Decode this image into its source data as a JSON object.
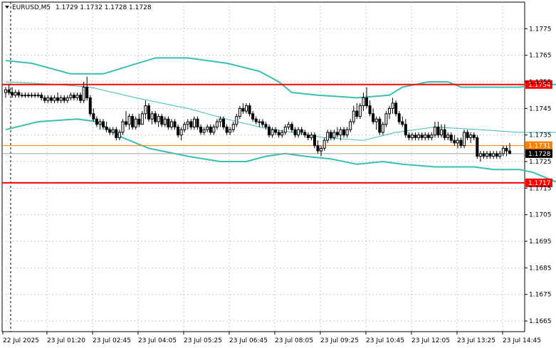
{
  "header": {
    "symbol": "EURUSD,M5",
    "ohlc": "1.1729 1.1732 1.1728 1.1728"
  },
  "chart_data": {
    "type": "candlestick",
    "symbol": "EURUSD",
    "timeframe": "M5",
    "ylim": [
      1.1661,
      1.1785
    ],
    "y_ticks": [
      "1.1775",
      "1.1765",
      "1.1755",
      "1.1745",
      "1.1735",
      "1.1725",
      "1.1715",
      "1.1705",
      "1.1695",
      "1.1685",
      "1.1675",
      "1.1665"
    ],
    "x_ticks": [
      "22 Jul 2025",
      "23 Jul 01:20",
      "23 Jul 02:45",
      "23 Jul 04:05",
      "23 Jul 05:25",
      "23 Jul 06:45",
      "23 Jul 08:05",
      "23 Jul 09:25",
      "23 Jul 10:45",
      "23 Jul 12:05",
      "23 Jul 13:25",
      "23 Jul 14:45"
    ],
    "grid": true,
    "levels": [
      {
        "label": "1.1754",
        "value": 1.1754,
        "color": "#ff0000",
        "width": 2
      },
      {
        "label": "1.1731",
        "value": 1.1731,
        "color": "#ff8000",
        "width": 1
      },
      {
        "label": "1.1717",
        "value": 1.1717,
        "color": "#ff0000",
        "width": 2
      }
    ],
    "current_price": {
      "label": "1.1728",
      "value": 1.1728
    },
    "bollinger": {
      "color": "#3cbfb0",
      "upper": [
        [
          0,
          1.1763
        ],
        [
          8,
          1.1762
        ],
        [
          20,
          1.1758
        ],
        [
          30,
          1.1758
        ],
        [
          38,
          1.1761
        ],
        [
          46,
          1.1764
        ],
        [
          56,
          1.1764
        ],
        [
          68,
          1.1762
        ],
        [
          78,
          1.1759
        ],
        [
          84,
          1.1755
        ],
        [
          88,
          1.1751
        ],
        [
          96,
          1.175
        ],
        [
          108,
          1.1749
        ],
        [
          118,
          1.175
        ],
        [
          122,
          1.1753
        ],
        [
          130,
          1.1755
        ],
        [
          136,
          1.1755
        ],
        [
          140,
          1.1753
        ],
        [
          150,
          1.1753
        ],
        [
          158,
          1.1753
        ],
        [
          164,
          1.1754
        ],
        [
          172,
          1.1754
        ],
        [
          175,
          1.1754
        ]
      ],
      "middle": [
        [
          0,
          1.1755
        ],
        [
          16,
          1.1754
        ],
        [
          26,
          1.1753
        ],
        [
          40,
          1.1749
        ],
        [
          56,
          1.1745
        ],
        [
          68,
          1.1741
        ],
        [
          78,
          1.1738
        ],
        [
          88,
          1.1736
        ],
        [
          98,
          1.1734
        ],
        [
          110,
          1.1733
        ],
        [
          120,
          1.1736
        ],
        [
          132,
          1.1738
        ],
        [
          146,
          1.1737
        ],
        [
          158,
          1.1736
        ],
        [
          170,
          1.1736
        ],
        [
          175,
          1.1735
        ]
      ],
      "lower": [
        [
          0,
          1.1737
        ],
        [
          10,
          1.174
        ],
        [
          22,
          1.1741
        ],
        [
          28,
          1.174
        ],
        [
          36,
          1.1734
        ],
        [
          44,
          1.173
        ],
        [
          56,
          1.1727
        ],
        [
          66,
          1.1725
        ],
        [
          74,
          1.1725
        ],
        [
          80,
          1.1727
        ],
        [
          86,
          1.1728
        ],
        [
          92,
          1.1727
        ],
        [
          100,
          1.1726
        ],
        [
          108,
          1.1724
        ],
        [
          116,
          1.1725
        ],
        [
          122,
          1.1724
        ],
        [
          132,
          1.1723
        ],
        [
          144,
          1.1723
        ],
        [
          150,
          1.1722
        ],
        [
          158,
          1.1722
        ],
        [
          162,
          1.1721
        ],
        [
          170,
          1.1717
        ],
        [
          175,
          1.1716
        ]
      ]
    },
    "candles_ohlc": [
      [
        1.1751,
        1.1753,
        1.1749,
        1.1752
      ],
      [
        1.1752,
        1.1754,
        1.175,
        1.1751
      ],
      [
        1.1751,
        1.1753,
        1.1749,
        1.175
      ],
      [
        1.175,
        1.1752,
        1.1749,
        1.1751
      ],
      [
        1.1751,
        1.1752,
        1.1749,
        1.175
      ],
      [
        1.175,
        1.1751,
        1.1749,
        1.175
      ],
      [
        1.175,
        1.1751,
        1.1749,
        1.175
      ],
      [
        1.175,
        1.1751,
        1.1749,
        1.175
      ],
      [
        1.175,
        1.1751,
        1.1749,
        1.175
      ],
      [
        1.175,
        1.1751,
        1.1749,
        1.175
      ],
      [
        1.175,
        1.1751,
        1.1749,
        1.175
      ],
      [
        1.175,
        1.1751,
        1.1748,
        1.1749
      ],
      [
        1.1749,
        1.175,
        1.1747,
        1.1748
      ],
      [
        1.1748,
        1.175,
        1.1747,
        1.1749
      ],
      [
        1.1749,
        1.175,
        1.1747,
        1.1748
      ],
      [
        1.1748,
        1.175,
        1.1747,
        1.1749
      ],
      [
        1.1749,
        1.1751,
        1.1747,
        1.1748
      ],
      [
        1.1748,
        1.175,
        1.1747,
        1.1749
      ],
      [
        1.1749,
        1.175,
        1.1747,
        1.1748
      ],
      [
        1.1748,
        1.175,
        1.1747,
        1.1749
      ],
      [
        1.1749,
        1.1751,
        1.1748,
        1.175
      ],
      [
        1.175,
        1.1751,
        1.1748,
        1.1749
      ],
      [
        1.1749,
        1.1751,
        1.1748,
        1.175
      ],
      [
        1.175,
        1.1751,
        1.1747,
        1.1748
      ],
      [
        1.1748,
        1.1755,
        1.1747,
        1.1753
      ],
      [
        1.1753,
        1.1757,
        1.1748,
        1.1749
      ],
      [
        1.1749,
        1.175,
        1.1742,
        1.1743
      ],
      [
        1.1743,
        1.1745,
        1.174,
        1.1741
      ],
      [
        1.1741,
        1.1742,
        1.1738,
        1.1739
      ],
      [
        1.1739,
        1.1741,
        1.1737,
        1.174
      ],
      [
        1.174,
        1.1741,
        1.1737,
        1.1738
      ],
      [
        1.1738,
        1.174,
        1.1736,
        1.1737
      ],
      [
        1.1737,
        1.1738,
        1.1735,
        1.1736
      ],
      [
        1.1736,
        1.1738,
        1.1735,
        1.1737
      ],
      [
        1.1737,
        1.1738,
        1.1733,
        1.1734
      ],
      [
        1.1734,
        1.1737,
        1.1733,
        1.1736
      ],
      [
        1.1736,
        1.1741,
        1.1735,
        1.174
      ],
      [
        1.174,
        1.1744,
        1.1738,
        1.1739
      ],
      [
        1.1739,
        1.1743,
        1.1737,
        1.1742
      ],
      [
        1.1742,
        1.1743,
        1.1737,
        1.1738
      ],
      [
        1.1738,
        1.1742,
        1.1737,
        1.1741
      ],
      [
        1.1741,
        1.1743,
        1.1738,
        1.1739
      ],
      [
        1.1739,
        1.1744,
        1.1739,
        1.1743
      ],
      [
        1.1743,
        1.1748,
        1.1741,
        1.1746
      ],
      [
        1.1746,
        1.1747,
        1.174,
        1.1741
      ],
      [
        1.1741,
        1.1744,
        1.1739,
        1.1743
      ],
      [
        1.1743,
        1.1744,
        1.1739,
        1.174
      ],
      [
        1.174,
        1.1743,
        1.1738,
        1.1742
      ],
      [
        1.1742,
        1.1743,
        1.1738,
        1.1739
      ],
      [
        1.1739,
        1.1742,
        1.1738,
        1.1741
      ],
      [
        1.1741,
        1.1742,
        1.1737,
        1.1738
      ],
      [
        1.1738,
        1.1741,
        1.1737,
        1.174
      ],
      [
        1.174,
        1.1741,
        1.1737,
        1.1738
      ],
      [
        1.1738,
        1.1739,
        1.1734,
        1.1735
      ],
      [
        1.1735,
        1.1738,
        1.1733,
        1.1737
      ],
      [
        1.1737,
        1.174,
        1.1736,
        1.1739
      ],
      [
        1.1739,
        1.1741,
        1.1737,
        1.174
      ],
      [
        1.174,
        1.1741,
        1.1737,
        1.1738
      ],
      [
        1.1738,
        1.1742,
        1.1737,
        1.1741
      ],
      [
        1.1741,
        1.1742,
        1.1737,
        1.1738
      ],
      [
        1.1738,
        1.1739,
        1.1735,
        1.1736
      ],
      [
        1.1736,
        1.1738,
        1.1735,
        1.1737
      ],
      [
        1.1737,
        1.1739,
        1.1736,
        1.1738
      ],
      [
        1.1738,
        1.1739,
        1.1735,
        1.1736
      ],
      [
        1.1736,
        1.1739,
        1.1735,
        1.1738
      ],
      [
        1.1738,
        1.1741,
        1.1737,
        1.174
      ],
      [
        1.174,
        1.1742,
        1.1738,
        1.1741
      ],
      [
        1.1741,
        1.1742,
        1.1737,
        1.1738
      ],
      [
        1.1738,
        1.1739,
        1.1735,
        1.1736
      ],
      [
        1.1736,
        1.1738,
        1.1735,
        1.1737
      ],
      [
        1.1737,
        1.174,
        1.1736,
        1.1739
      ],
      [
        1.1739,
        1.1743,
        1.1738,
        1.1742
      ],
      [
        1.1742,
        1.1746,
        1.1741,
        1.1745
      ],
      [
        1.1745,
        1.1747,
        1.1743,
        1.1744
      ],
      [
        1.1744,
        1.1747,
        1.1743,
        1.1746
      ],
      [
        1.1746,
        1.1747,
        1.1742,
        1.1743
      ],
      [
        1.1743,
        1.1744,
        1.174,
        1.1741
      ],
      [
        1.1741,
        1.1742,
        1.1739,
        1.174
      ],
      [
        1.174,
        1.1741,
        1.1738,
        1.174
      ],
      [
        1.174,
        1.1741,
        1.1738,
        1.1739
      ],
      [
        1.1739,
        1.174,
        1.1737,
        1.1738
      ],
      [
        1.1738,
        1.1739,
        1.1734,
        1.1735
      ],
      [
        1.1735,
        1.1738,
        1.1734,
        1.1737
      ],
      [
        1.1737,
        1.1738,
        1.1735,
        1.1736
      ],
      [
        1.1736,
        1.1737,
        1.1734,
        1.1735
      ],
      [
        1.1735,
        1.1737,
        1.1734,
        1.1736
      ],
      [
        1.1736,
        1.1739,
        1.1735,
        1.1738
      ],
      [
        1.1738,
        1.174,
        1.1737,
        1.1739
      ],
      [
        1.1739,
        1.174,
        1.1736,
        1.1737
      ],
      [
        1.1737,
        1.1738,
        1.1734,
        1.1735
      ],
      [
        1.1735,
        1.1738,
        1.1734,
        1.1737
      ],
      [
        1.1737,
        1.1738,
        1.1735,
        1.1736
      ],
      [
        1.1736,
        1.1737,
        1.1734,
        1.1735
      ],
      [
        1.1735,
        1.1736,
        1.1733,
        1.1734
      ],
      [
        1.1734,
        1.1736,
        1.1733,
        1.1735
      ],
      [
        1.1735,
        1.1736,
        1.173,
        1.1731
      ],
      [
        1.1731,
        1.1733,
        1.1728,
        1.1729
      ],
      [
        1.1729,
        1.1731,
        1.1727,
        1.173
      ],
      [
        1.173,
        1.1734,
        1.1729,
        1.1733
      ],
      [
        1.1733,
        1.1737,
        1.1732,
        1.1736
      ],
      [
        1.1736,
        1.1737,
        1.1733,
        1.1734
      ],
      [
        1.1734,
        1.1737,
        1.1733,
        1.1736
      ],
      [
        1.1736,
        1.1738,
        1.1734,
        1.1735
      ],
      [
        1.1735,
        1.1738,
        1.1733,
        1.1737
      ],
      [
        1.1737,
        1.1738,
        1.1734,
        1.1735
      ],
      [
        1.1735,
        1.1738,
        1.1734,
        1.1737
      ],
      [
        1.1737,
        1.1741,
        1.1736,
        1.174
      ],
      [
        1.174,
        1.1746,
        1.1739,
        1.1744
      ],
      [
        1.1744,
        1.1747,
        1.1741,
        1.1742
      ],
      [
        1.1742,
        1.1747,
        1.1741,
        1.1746
      ],
      [
        1.1746,
        1.1751,
        1.1744,
        1.1749
      ],
      [
        1.1749,
        1.1753,
        1.1745,
        1.1746
      ],
      [
        1.1746,
        1.1748,
        1.1742,
        1.1743
      ],
      [
        1.1743,
        1.1745,
        1.1739,
        1.174
      ],
      [
        1.174,
        1.1742,
        1.1737,
        1.1741
      ],
      [
        1.1741,
        1.1742,
        1.1735,
        1.1736
      ],
      [
        1.1736,
        1.174,
        1.1735,
        1.1739
      ],
      [
        1.1739,
        1.1744,
        1.1738,
        1.1743
      ],
      [
        1.1743,
        1.1746,
        1.1741,
        1.1745
      ],
      [
        1.1745,
        1.1749,
        1.1743,
        1.1747
      ],
      [
        1.1747,
        1.1748,
        1.1742,
        1.1743
      ],
      [
        1.1743,
        1.1744,
        1.1739,
        1.174
      ],
      [
        1.174,
        1.1742,
        1.1738,
        1.1739
      ],
      [
        1.1739,
        1.1741,
        1.1734,
        1.1735
      ],
      [
        1.1735,
        1.1736,
        1.1733,
        1.1734
      ],
      [
        1.1734,
        1.1736,
        1.1733,
        1.1735
      ],
      [
        1.1735,
        1.1736,
        1.1733,
        1.1734
      ],
      [
        1.1734,
        1.1736,
        1.1733,
        1.1735
      ],
      [
        1.1735,
        1.1736,
        1.1733,
        1.1734
      ],
      [
        1.1734,
        1.1736,
        1.1733,
        1.1735
      ],
      [
        1.1735,
        1.1736,
        1.1733,
        1.1734
      ],
      [
        1.1734,
        1.1736,
        1.1733,
        1.1735
      ],
      [
        1.1735,
        1.174,
        1.1734,
        1.1738
      ],
      [
        1.1738,
        1.174,
        1.1734,
        1.1735
      ],
      [
        1.1735,
        1.1739,
        1.1734,
        1.1737
      ],
      [
        1.1737,
        1.1739,
        1.1733,
        1.1734
      ],
      [
        1.1734,
        1.1736,
        1.1733,
        1.1735
      ],
      [
        1.1735,
        1.1736,
        1.1732,
        1.1733
      ],
      [
        1.1733,
        1.1735,
        1.1731,
        1.1732
      ],
      [
        1.1732,
        1.1734,
        1.173,
        1.1733
      ],
      [
        1.1733,
        1.1734,
        1.173,
        1.1731
      ],
      [
        1.1731,
        1.1737,
        1.173,
        1.1736
      ],
      [
        1.1736,
        1.1737,
        1.1733,
        1.1734
      ],
      [
        1.1734,
        1.1736,
        1.1732,
        1.1735
      ],
      [
        1.1735,
        1.1736,
        1.1733,
        1.1734
      ],
      [
        1.1734,
        1.1735,
        1.1726,
        1.1727
      ],
      [
        1.1727,
        1.1729,
        1.1725,
        1.1728
      ],
      [
        1.1728,
        1.1729,
        1.1726,
        1.1727
      ],
      [
        1.1727,
        1.1729,
        1.1726,
        1.1728
      ],
      [
        1.1728,
        1.1729,
        1.1726,
        1.1727
      ],
      [
        1.1727,
        1.1729,
        1.1726,
        1.1728
      ],
      [
        1.1728,
        1.1729,
        1.1726,
        1.1727
      ],
      [
        1.1727,
        1.1729,
        1.1726,
        1.1728
      ],
      [
        1.1728,
        1.1731,
        1.1727,
        1.173
      ],
      [
        1.173,
        1.1731,
        1.1727,
        1.1729
      ],
      [
        1.1729,
        1.1732,
        1.1728,
        1.1728
      ]
    ]
  }
}
